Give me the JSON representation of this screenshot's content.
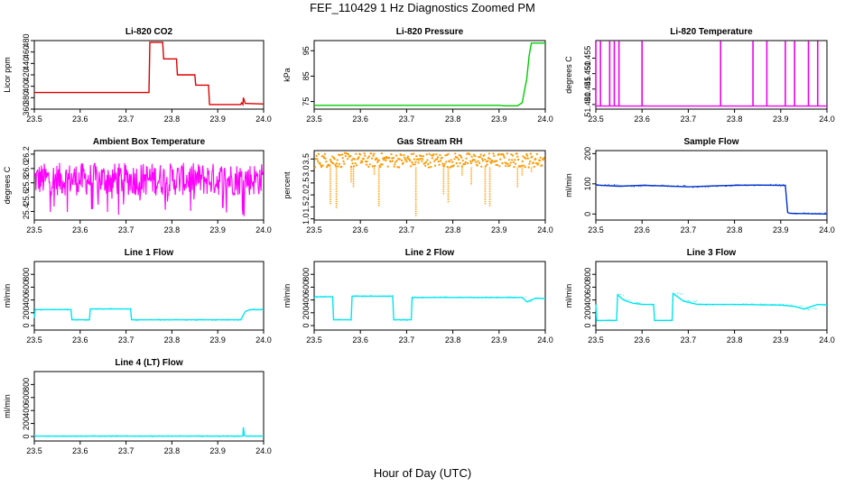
{
  "figure": {
    "title": "FEF_110429  1 Hz Diagnostics Zoomed PM",
    "xlabel": "Hour of Day (UTC)"
  },
  "chart_data": [
    {
      "type": "line",
      "title": "Li-820 CO2",
      "ylabel": "Licor ppm",
      "xlim": [
        23.5,
        24.0
      ],
      "ylim": [
        360,
        480
      ],
      "x_ticks": [
        "23.5",
        "23.6",
        "23.7",
        "23.8",
        "23.9",
        "24.0"
      ],
      "y_ticks": [
        "360",
        "380",
        "400",
        "420",
        "440",
        "460",
        "480"
      ],
      "color": "#dd0000",
      "series": [
        {
          "x": [
            23.5,
            23.6,
            23.7,
            23.75,
            23.752,
            23.78,
            23.782,
            23.81,
            23.812,
            23.85,
            23.852,
            23.88,
            23.882,
            23.95,
            23.952,
            23.955,
            23.956,
            23.96,
            23.962,
            24.0
          ],
          "y": [
            389,
            389,
            389,
            389,
            477,
            477,
            448,
            448,
            420,
            420,
            402,
            402,
            368,
            368,
            371,
            368,
            380,
            370,
            370,
            369
          ]
        }
      ]
    },
    {
      "type": "line",
      "title": "Li-820 Pressure",
      "ylabel": "kPa",
      "xlim": [
        23.5,
        24.0
      ],
      "ylim": [
        72,
        99
      ],
      "x_ticks": [
        "23.5",
        "23.6",
        "23.7",
        "23.8",
        "23.9",
        "24.0"
      ],
      "y_ticks": [
        "75",
        "85",
        "95"
      ],
      "color": "#00cc00",
      "series": [
        {
          "x": [
            23.5,
            23.9,
            23.91,
            23.94,
            23.95,
            23.96,
            23.965,
            23.97,
            24.0
          ],
          "y": [
            73.5,
            73.5,
            73.3,
            73.3,
            74.5,
            84,
            93,
            98,
            98
          ]
        }
      ]
    },
    {
      "type": "line",
      "title": "Li-820 Temperature",
      "ylabel": "degrees C",
      "xlim": [
        23.5,
        24.0
      ],
      "ylim": [
        51.4385,
        51.4607
      ],
      "x_ticks": [
        "23.5",
        "23.6",
        "23.7",
        "23.8",
        "23.9",
        "24.0"
      ],
      "y_ticks": [
        "51.440",
        "51.445",
        "51.450",
        "51.455"
      ],
      "color": "#ee00ee",
      "baseline": 51.4395,
      "spike_top": 51.4605,
      "spike_x": [
        23.5,
        23.51,
        23.53,
        23.54,
        23.55,
        23.6,
        23.77,
        23.84,
        23.87,
        23.91,
        23.93,
        23.96,
        23.98
      ]
    },
    {
      "type": "line",
      "title": "Ambient Box Temperature",
      "ylabel": "degrees C",
      "xlim": [
        23.5,
        24.0
      ],
      "ylim": [
        25.28,
        26.25
      ],
      "x_ticks": [
        "23.5",
        "23.6",
        "23.7",
        "23.8",
        "23.9",
        "24.0"
      ],
      "y_ticks": [
        "25.4",
        "25.6",
        "25.8",
        "26.0",
        "26.2"
      ],
      "color": "#ff00ff",
      "band": [
        25.62,
        26.08
      ],
      "center": 25.85
    },
    {
      "type": "scatter",
      "title": "Gas Stream RH",
      "ylabel": "percent",
      "xlim": [
        23.5,
        24.0
      ],
      "ylim": [
        0.95,
        3.85
      ],
      "x_ticks": [
        "23.5",
        "23.6",
        "23.7",
        "23.8",
        "23.9",
        "24.0"
      ],
      "y_ticks": [
        "1.0",
        "1.5",
        "2.0",
        "2.5",
        "3.0",
        "3.5"
      ],
      "color": "#ff9900",
      "band": [
        3.15,
        3.75
      ],
      "dips": [
        {
          "x": 23.535,
          "y": 1.6
        },
        {
          "x": 23.548,
          "y": 1.45
        },
        {
          "x": 23.58,
          "y": 2.5
        },
        {
          "x": 23.585,
          "y": 2.3
        },
        {
          "x": 23.63,
          "y": 2.85
        },
        {
          "x": 23.64,
          "y": 1.5
        },
        {
          "x": 23.72,
          "y": 1.1
        },
        {
          "x": 23.78,
          "y": 2.0
        },
        {
          "x": 23.79,
          "y": 1.65
        },
        {
          "x": 23.82,
          "y": 2.8
        },
        {
          "x": 23.84,
          "y": 2.4
        },
        {
          "x": 23.87,
          "y": 1.6
        },
        {
          "x": 23.88,
          "y": 1.5
        },
        {
          "x": 23.94,
          "y": 2.3
        },
        {
          "x": 23.95,
          "y": 2.8
        },
        {
          "x": 23.97,
          "y": 2.95
        }
      ]
    },
    {
      "type": "line",
      "title": "Sample Flow",
      "ylabel": "ml/min",
      "xlim": [
        23.5,
        24.0
      ],
      "ylim": [
        -20,
        210
      ],
      "x_ticks": [
        "23.5",
        "23.6",
        "23.7",
        "23.8",
        "23.9",
        "24.0"
      ],
      "y_ticks": [
        "0",
        "100",
        "200"
      ],
      "color": "#0033cc",
      "series": [
        {
          "x": [
            23.5,
            23.55,
            23.6,
            23.65,
            23.7,
            23.75,
            23.8,
            23.85,
            23.9,
            23.91,
            23.915,
            23.92,
            24.0
          ],
          "y": [
            96,
            92,
            95,
            93,
            90,
            93,
            95,
            96,
            95,
            95,
            5,
            2,
            0
          ]
        }
      ]
    },
    {
      "type": "line",
      "title": "Line 1 Flow",
      "ylabel": "ml/min",
      "xlim": [
        23.5,
        24.0
      ],
      "ylim": [
        -70,
        1000
      ],
      "x_ticks": [
        "23.5",
        "23.6",
        "23.7",
        "23.8",
        "23.9",
        "24.0"
      ],
      "y_ticks": [
        "0",
        "200",
        "400",
        "600",
        "800"
      ],
      "color": "#00e5ee",
      "series": [
        {
          "x": [
            23.5,
            23.502,
            23.58,
            23.582,
            23.62,
            23.622,
            23.71,
            23.712,
            23.95,
            23.96,
            23.97,
            24.0
          ],
          "y": [
            120,
            250,
            250,
            90,
            90,
            260,
            260,
            90,
            90,
            220,
            250,
            250
          ]
        }
      ]
    },
    {
      "type": "line",
      "title": "Line 2 Flow",
      "ylabel": "ml/min",
      "xlim": [
        23.5,
        24.0
      ],
      "ylim": [
        -70,
        1000
      ],
      "x_ticks": [
        "23.5",
        "23.6",
        "23.7",
        "23.8",
        "23.9",
        "24.0"
      ],
      "y_ticks": [
        "0",
        "200",
        "400",
        "600",
        "800"
      ],
      "color": "#00e5ee",
      "series": [
        {
          "x": [
            23.5,
            23.502,
            23.54,
            23.542,
            23.58,
            23.582,
            23.67,
            23.672,
            23.71,
            23.712,
            23.95,
            23.96,
            23.98,
            24.0
          ],
          "y": [
            430,
            450,
            450,
            90,
            90,
            460,
            460,
            90,
            90,
            440,
            440,
            370,
            430,
            420
          ]
        }
      ]
    },
    {
      "type": "line",
      "title": "Line 3 Flow",
      "ylabel": "ml/min",
      "xlim": [
        23.5,
        24.0
      ],
      "ylim": [
        -70,
        1000
      ],
      "x_ticks": [
        "23.5",
        "23.6",
        "23.7",
        "23.8",
        "23.9",
        "24.0"
      ],
      "y_ticks": [
        "0",
        "200",
        "400",
        "600",
        "800"
      ],
      "color": "#00e5ee",
      "series": [
        {
          "x": [
            23.5,
            23.502,
            23.545,
            23.547,
            23.56,
            23.58,
            23.6,
            23.625,
            23.627,
            23.665,
            23.667,
            23.69,
            23.72,
            23.8,
            23.9,
            23.93,
            23.95,
            23.98,
            24.0
          ],
          "y": [
            330,
            80,
            80,
            480,
            400,
            350,
            330,
            330,
            80,
            80,
            500,
            380,
            330,
            330,
            320,
            300,
            260,
            330,
            320
          ]
        }
      ]
    },
    {
      "type": "line",
      "title": "Line 4 (LT) Flow",
      "ylabel": "ml/min",
      "xlim": [
        23.5,
        24.0
      ],
      "ylim": [
        -70,
        1000
      ],
      "x_ticks": [
        "23.5",
        "23.6",
        "23.7",
        "23.8",
        "23.9",
        "24.0"
      ],
      "y_ticks": [
        "0",
        "200",
        "400",
        "600",
        "800"
      ],
      "color": "#00e5ee",
      "series": [
        {
          "x": [
            23.5,
            23.6,
            23.7,
            23.8,
            23.9,
            23.955,
            23.956,
            23.958,
            23.96,
            24.0
          ],
          "y": [
            5,
            5,
            5,
            5,
            5,
            5,
            140,
            20,
            5,
            5
          ]
        }
      ]
    }
  ]
}
